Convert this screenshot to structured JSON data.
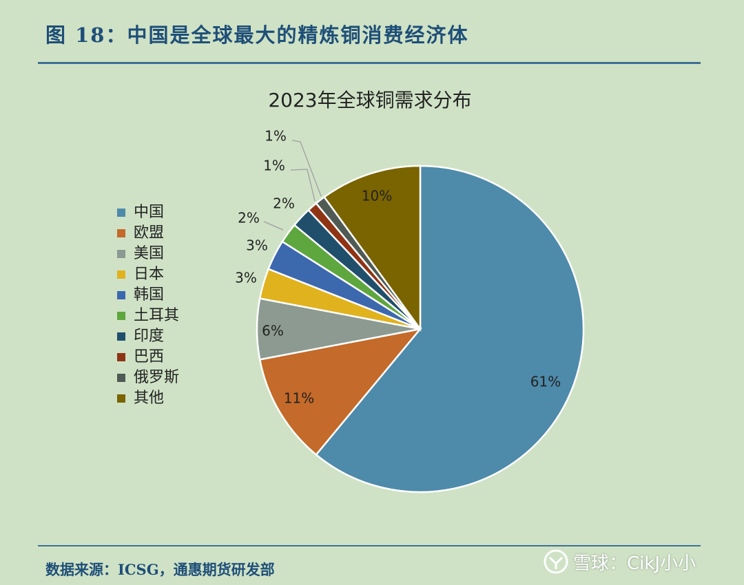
{
  "figure": {
    "title": "图 18：中国是全球最大的精炼铜消费经济体",
    "source": "数据来源：ICSG，通惠期货研发部"
  },
  "watermark": {
    "text": "雪球：CikJ小小",
    "icon": "xueqiu-logo-icon"
  },
  "colors": {
    "background": "#cfe2c6",
    "accent": "#1f4f78"
  },
  "chart_data": {
    "type": "pie",
    "title": "2023年全球铜需求分布",
    "legend_position": "left",
    "slices": [
      {
        "name": "中国",
        "value": 61,
        "label": "61%",
        "color": "#4e8aaa"
      },
      {
        "name": "欧盟",
        "value": 11,
        "label": "11%",
        "color": "#c46a2a"
      },
      {
        "name": "美国",
        "value": 6,
        "label": "6%",
        "color": "#8c9a91"
      },
      {
        "name": "日本",
        "value": 3,
        "label": "3%",
        "color": "#e0b21e"
      },
      {
        "name": "韩国",
        "value": 3,
        "label": "3%",
        "color": "#3c68ad"
      },
      {
        "name": "土耳其",
        "value": 2,
        "label": "2%",
        "color": "#5ea63e"
      },
      {
        "name": "印度",
        "value": 2,
        "label": "2%",
        "color": "#1f4f6b"
      },
      {
        "name": "巴西",
        "value": 1,
        "label": "1%",
        "color": "#8e3415"
      },
      {
        "name": "俄罗斯",
        "value": 1,
        "label": "1%",
        "color": "#4f5a54"
      },
      {
        "name": "其他",
        "value": 10,
        "label": "10%",
        "color": "#7a6400"
      }
    ]
  }
}
